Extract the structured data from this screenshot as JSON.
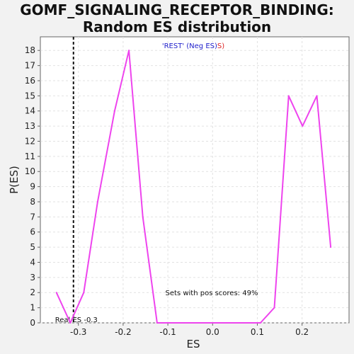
{
  "chart_data": {
    "type": "line",
    "title": "GOMF_SIGNALING_RECEPTOR_BINDING: Random ES distribution",
    "title_lines": [
      "GOMF_SIGNALING_RECEPTOR_BINDING:",
      "Random ES distribution"
    ],
    "subtitle_parts": [
      {
        "text": "'REST' (Neg ES)",
        "color": "#2222cc"
      },
      {
        "text": "S)",
        "color": "#dd2222"
      }
    ],
    "xlabel": "ES",
    "ylabel": "P(ES)",
    "xlim": [
      -0.385,
      0.305
    ],
    "ylim": [
      0,
      18.9
    ],
    "x_ticks": [
      -0.3,
      -0.2,
      -0.1,
      0.0,
      0.1,
      0.2
    ],
    "x_tick_labels": [
      "-0.3",
      "-0.2",
      "-0.1",
      "0.0",
      "0.1",
      "0.2"
    ],
    "y_ticks": [
      0,
      1,
      2,
      3,
      4,
      5,
      6,
      7,
      8,
      9,
      10,
      11,
      12,
      13,
      14,
      15,
      16,
      17,
      18
    ],
    "grid": true,
    "series": [
      {
        "color": "#ee44ee",
        "x": [
          -0.349,
          -0.318,
          -0.288,
          -0.257,
          -0.219,
          -0.187,
          -0.156,
          -0.124,
          -0.094,
          -0.062,
          -0.031,
          0.0,
          0.031,
          0.062,
          0.107,
          0.138,
          0.17,
          0.201,
          0.233,
          0.264
        ],
        "y": [
          2,
          0,
          2,
          8,
          14,
          18,
          7,
          0,
          0,
          0,
          0,
          0,
          0,
          0,
          0,
          1,
          15,
          13,
          15,
          5
        ]
      }
    ],
    "reference_line": {
      "x": -0.311,
      "label": "Real ES -0.3",
      "color": "#111111",
      "style": "dashed"
    },
    "annotation": "Sets with pos scores: 49%"
  }
}
